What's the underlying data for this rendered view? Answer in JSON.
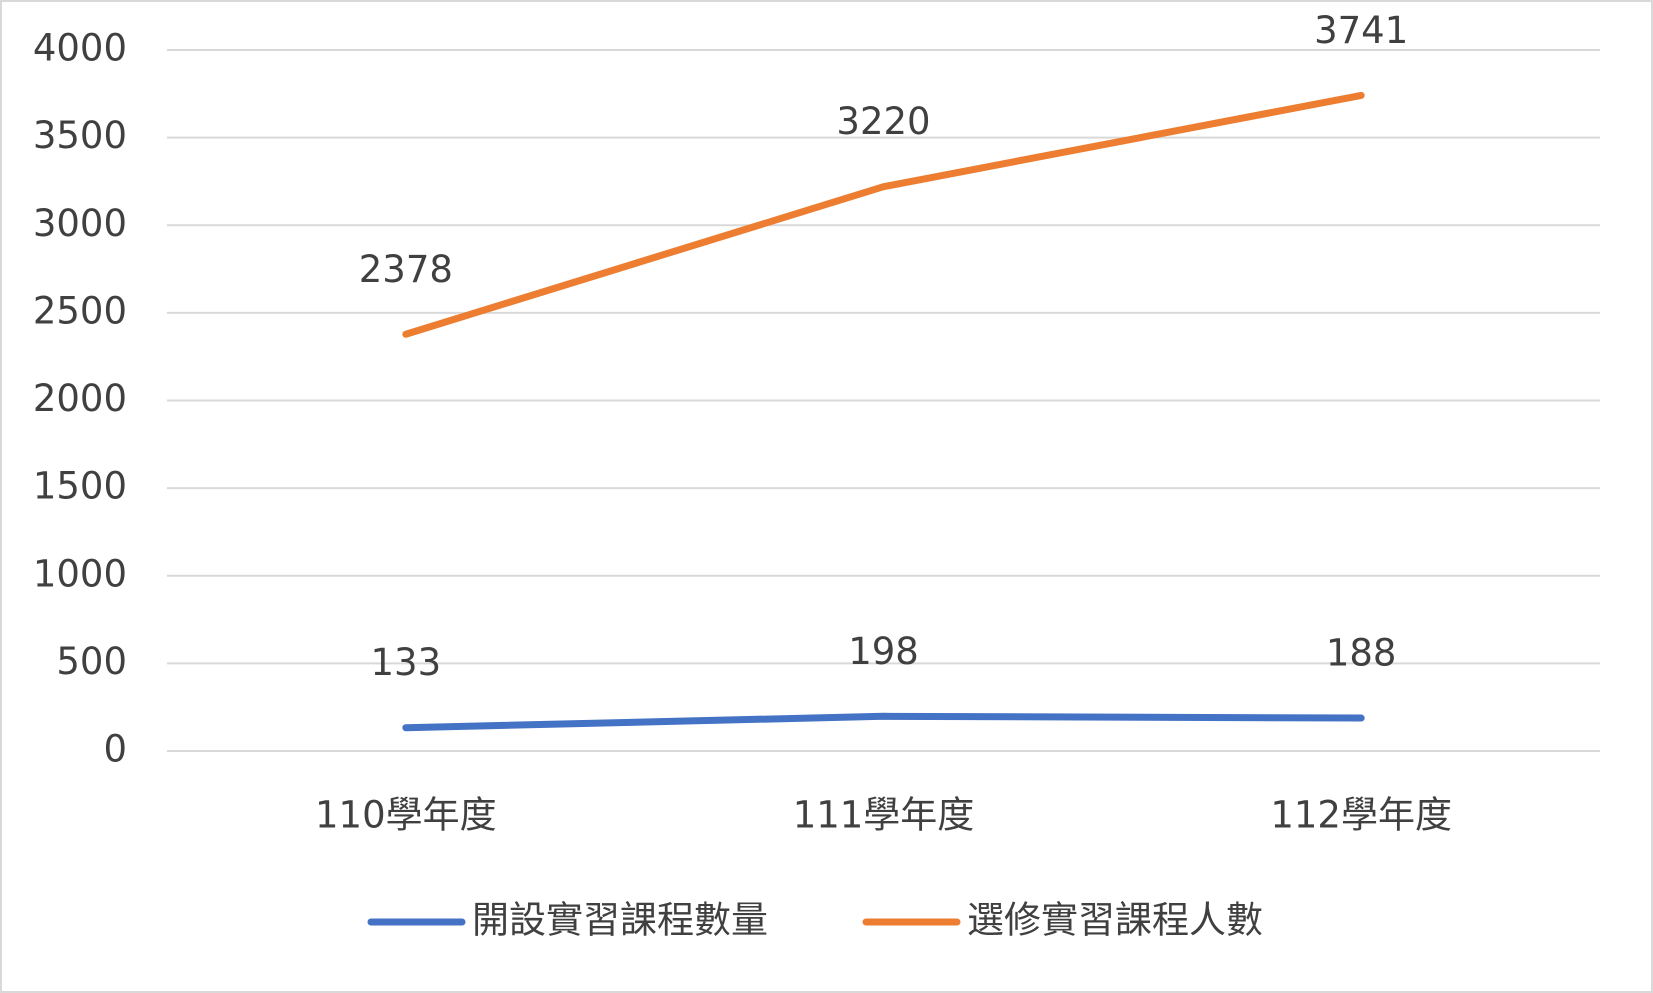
{
  "chart_data": {
    "type": "line",
    "categories": [
      "110學年度",
      "111學年度",
      "112學年度"
    ],
    "series": [
      {
        "name": "開設實習課程數量",
        "color": "#4472c4",
        "values": [
          133,
          198,
          188
        ]
      },
      {
        "name": "選修實習課程人數",
        "color": "#ed7d31",
        "values": [
          2378,
          3220,
          3741
        ]
      }
    ],
    "ylim": [
      0,
      4000
    ],
    "yticks": [
      0,
      500,
      1000,
      1500,
      2000,
      2500,
      3000,
      3500,
      4000
    ],
    "grid": true,
    "legend": "bottom"
  }
}
